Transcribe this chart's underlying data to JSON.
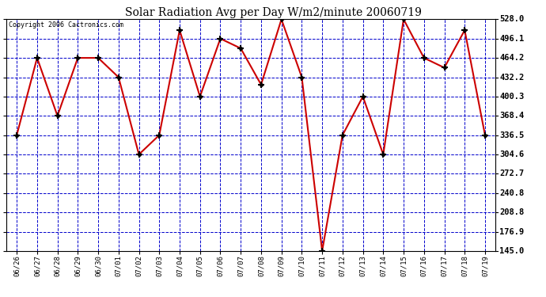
{
  "title": "Solar Radiation Avg per Day W/m2/minute 20060719",
  "copyright": "Copyright 2006 Cactronics.com",
  "dates": [
    "06/26",
    "06/27",
    "06/28",
    "06/29",
    "06/30",
    "07/01",
    "07/02",
    "07/03",
    "07/04",
    "07/05",
    "07/06",
    "07/07",
    "07/08",
    "07/09",
    "07/10",
    "07/11",
    "07/12",
    "07/13",
    "07/14",
    "07/15",
    "07/16",
    "07/17",
    "07/18",
    "07/19"
  ],
  "values": [
    336.5,
    464.2,
    368.4,
    464.2,
    464.2,
    432.2,
    304.6,
    336.5,
    510.0,
    400.3,
    496.1,
    480.0,
    420.0,
    528.0,
    432.2,
    145.0,
    336.5,
    400.3,
    304.6,
    528.0,
    464.2,
    448.0,
    510.0,
    336.5
  ],
  "ymin": 145.0,
  "ymax": 528.0,
  "yticks": [
    145.0,
    176.9,
    208.8,
    240.8,
    272.7,
    304.6,
    336.5,
    368.4,
    400.3,
    432.2,
    464.2,
    496.1,
    528.0
  ],
  "line_color": "#cc0000",
  "marker_color": "#000000",
  "bg_color": "#ffffff",
  "plot_bg_color": "#ffffff",
  "grid_color": "#0000cc",
  "title_color": "#000000",
  "copyright_color": "#000000",
  "right_axis_label_color": "#000000"
}
